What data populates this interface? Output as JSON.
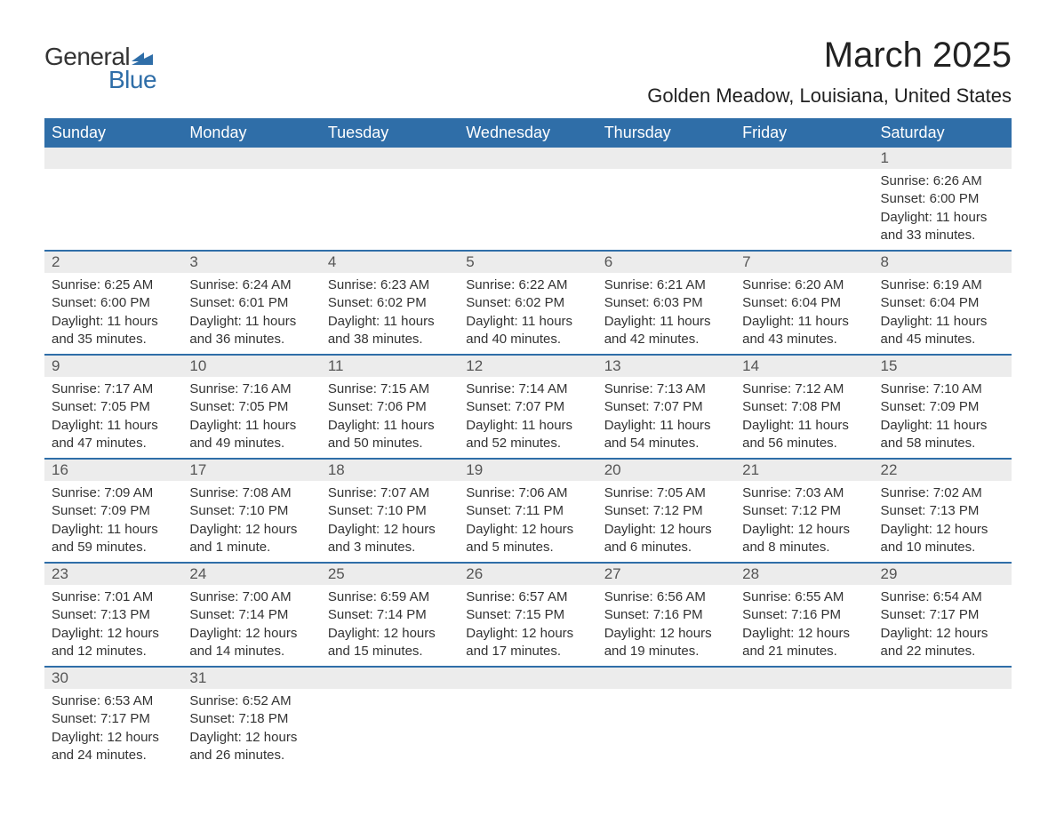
{
  "logo": {
    "word1": "General",
    "word2": "Blue",
    "shape_color": "#2f6ea8"
  },
  "title": "March 2025",
  "location": "Golden Meadow, Louisiana, United States",
  "calendar": {
    "header_bg": "#2f6ea8",
    "header_text_color": "#ffffff",
    "row_divider_color": "#2f6ea8",
    "daynum_bg": "#ececec",
    "body_bg": "#ffffff",
    "text_color": "#333333",
    "days_of_week": [
      "Sunday",
      "Monday",
      "Tuesday",
      "Wednesday",
      "Thursday",
      "Friday",
      "Saturday"
    ],
    "weeks": [
      [
        null,
        null,
        null,
        null,
        null,
        null,
        {
          "n": "1",
          "sunrise": "Sunrise: 6:26 AM",
          "sunset": "Sunset: 6:00 PM",
          "daylight1": "Daylight: 11 hours",
          "daylight2": "and 33 minutes."
        }
      ],
      [
        {
          "n": "2",
          "sunrise": "Sunrise: 6:25 AM",
          "sunset": "Sunset: 6:00 PM",
          "daylight1": "Daylight: 11 hours",
          "daylight2": "and 35 minutes."
        },
        {
          "n": "3",
          "sunrise": "Sunrise: 6:24 AM",
          "sunset": "Sunset: 6:01 PM",
          "daylight1": "Daylight: 11 hours",
          "daylight2": "and 36 minutes."
        },
        {
          "n": "4",
          "sunrise": "Sunrise: 6:23 AM",
          "sunset": "Sunset: 6:02 PM",
          "daylight1": "Daylight: 11 hours",
          "daylight2": "and 38 minutes."
        },
        {
          "n": "5",
          "sunrise": "Sunrise: 6:22 AM",
          "sunset": "Sunset: 6:02 PM",
          "daylight1": "Daylight: 11 hours",
          "daylight2": "and 40 minutes."
        },
        {
          "n": "6",
          "sunrise": "Sunrise: 6:21 AM",
          "sunset": "Sunset: 6:03 PM",
          "daylight1": "Daylight: 11 hours",
          "daylight2": "and 42 minutes."
        },
        {
          "n": "7",
          "sunrise": "Sunrise: 6:20 AM",
          "sunset": "Sunset: 6:04 PM",
          "daylight1": "Daylight: 11 hours",
          "daylight2": "and 43 minutes."
        },
        {
          "n": "8",
          "sunrise": "Sunrise: 6:19 AM",
          "sunset": "Sunset: 6:04 PM",
          "daylight1": "Daylight: 11 hours",
          "daylight2": "and 45 minutes."
        }
      ],
      [
        {
          "n": "9",
          "sunrise": "Sunrise: 7:17 AM",
          "sunset": "Sunset: 7:05 PM",
          "daylight1": "Daylight: 11 hours",
          "daylight2": "and 47 minutes."
        },
        {
          "n": "10",
          "sunrise": "Sunrise: 7:16 AM",
          "sunset": "Sunset: 7:05 PM",
          "daylight1": "Daylight: 11 hours",
          "daylight2": "and 49 minutes."
        },
        {
          "n": "11",
          "sunrise": "Sunrise: 7:15 AM",
          "sunset": "Sunset: 7:06 PM",
          "daylight1": "Daylight: 11 hours",
          "daylight2": "and 50 minutes."
        },
        {
          "n": "12",
          "sunrise": "Sunrise: 7:14 AM",
          "sunset": "Sunset: 7:07 PM",
          "daylight1": "Daylight: 11 hours",
          "daylight2": "and 52 minutes."
        },
        {
          "n": "13",
          "sunrise": "Sunrise: 7:13 AM",
          "sunset": "Sunset: 7:07 PM",
          "daylight1": "Daylight: 11 hours",
          "daylight2": "and 54 minutes."
        },
        {
          "n": "14",
          "sunrise": "Sunrise: 7:12 AM",
          "sunset": "Sunset: 7:08 PM",
          "daylight1": "Daylight: 11 hours",
          "daylight2": "and 56 minutes."
        },
        {
          "n": "15",
          "sunrise": "Sunrise: 7:10 AM",
          "sunset": "Sunset: 7:09 PM",
          "daylight1": "Daylight: 11 hours",
          "daylight2": "and 58 minutes."
        }
      ],
      [
        {
          "n": "16",
          "sunrise": "Sunrise: 7:09 AM",
          "sunset": "Sunset: 7:09 PM",
          "daylight1": "Daylight: 11 hours",
          "daylight2": "and 59 minutes."
        },
        {
          "n": "17",
          "sunrise": "Sunrise: 7:08 AM",
          "sunset": "Sunset: 7:10 PM",
          "daylight1": "Daylight: 12 hours",
          "daylight2": "and 1 minute."
        },
        {
          "n": "18",
          "sunrise": "Sunrise: 7:07 AM",
          "sunset": "Sunset: 7:10 PM",
          "daylight1": "Daylight: 12 hours",
          "daylight2": "and 3 minutes."
        },
        {
          "n": "19",
          "sunrise": "Sunrise: 7:06 AM",
          "sunset": "Sunset: 7:11 PM",
          "daylight1": "Daylight: 12 hours",
          "daylight2": "and 5 minutes."
        },
        {
          "n": "20",
          "sunrise": "Sunrise: 7:05 AM",
          "sunset": "Sunset: 7:12 PM",
          "daylight1": "Daylight: 12 hours",
          "daylight2": "and 6 minutes."
        },
        {
          "n": "21",
          "sunrise": "Sunrise: 7:03 AM",
          "sunset": "Sunset: 7:12 PM",
          "daylight1": "Daylight: 12 hours",
          "daylight2": "and 8 minutes."
        },
        {
          "n": "22",
          "sunrise": "Sunrise: 7:02 AM",
          "sunset": "Sunset: 7:13 PM",
          "daylight1": "Daylight: 12 hours",
          "daylight2": "and 10 minutes."
        }
      ],
      [
        {
          "n": "23",
          "sunrise": "Sunrise: 7:01 AM",
          "sunset": "Sunset: 7:13 PM",
          "daylight1": "Daylight: 12 hours",
          "daylight2": "and 12 minutes."
        },
        {
          "n": "24",
          "sunrise": "Sunrise: 7:00 AM",
          "sunset": "Sunset: 7:14 PM",
          "daylight1": "Daylight: 12 hours",
          "daylight2": "and 14 minutes."
        },
        {
          "n": "25",
          "sunrise": "Sunrise: 6:59 AM",
          "sunset": "Sunset: 7:14 PM",
          "daylight1": "Daylight: 12 hours",
          "daylight2": "and 15 minutes."
        },
        {
          "n": "26",
          "sunrise": "Sunrise: 6:57 AM",
          "sunset": "Sunset: 7:15 PM",
          "daylight1": "Daylight: 12 hours",
          "daylight2": "and 17 minutes."
        },
        {
          "n": "27",
          "sunrise": "Sunrise: 6:56 AM",
          "sunset": "Sunset: 7:16 PM",
          "daylight1": "Daylight: 12 hours",
          "daylight2": "and 19 minutes."
        },
        {
          "n": "28",
          "sunrise": "Sunrise: 6:55 AM",
          "sunset": "Sunset: 7:16 PM",
          "daylight1": "Daylight: 12 hours",
          "daylight2": "and 21 minutes."
        },
        {
          "n": "29",
          "sunrise": "Sunrise: 6:54 AM",
          "sunset": "Sunset: 7:17 PM",
          "daylight1": "Daylight: 12 hours",
          "daylight2": "and 22 minutes."
        }
      ],
      [
        {
          "n": "30",
          "sunrise": "Sunrise: 6:53 AM",
          "sunset": "Sunset: 7:17 PM",
          "daylight1": "Daylight: 12 hours",
          "daylight2": "and 24 minutes."
        },
        {
          "n": "31",
          "sunrise": "Sunrise: 6:52 AM",
          "sunset": "Sunset: 7:18 PM",
          "daylight1": "Daylight: 12 hours",
          "daylight2": "and 26 minutes."
        },
        null,
        null,
        null,
        null,
        null
      ]
    ]
  }
}
